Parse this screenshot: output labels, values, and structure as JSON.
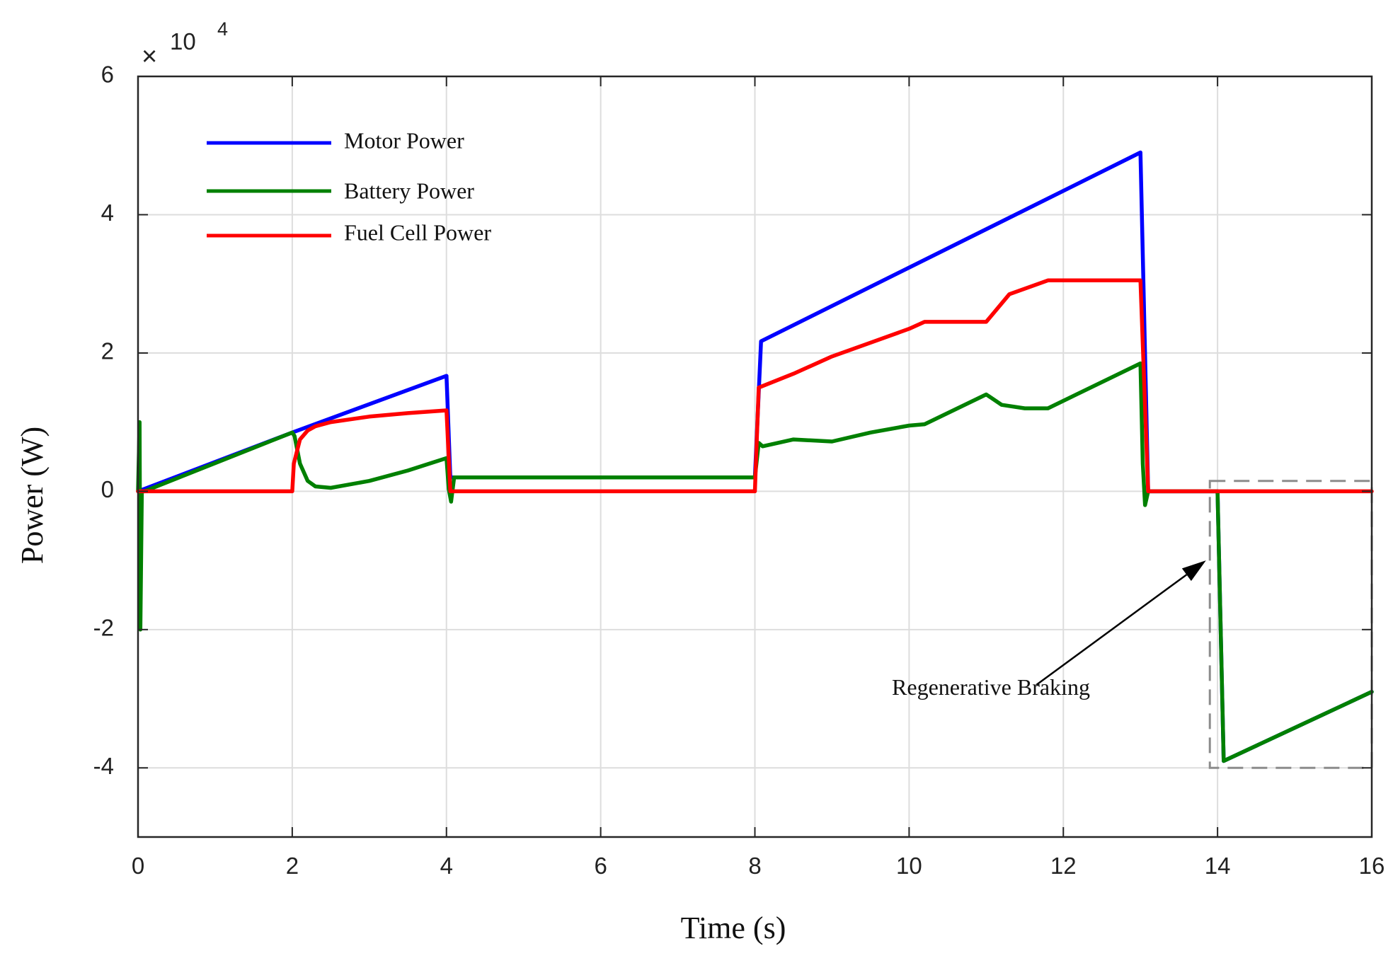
{
  "chart_data": {
    "type": "line",
    "xlabel": "Time (s)",
    "ylabel": "Power (W)",
    "xlim": [
      0,
      16
    ],
    "ylim": [
      -50000,
      60000
    ],
    "xticks": [
      0,
      2,
      4,
      6,
      8,
      10,
      12,
      14,
      16
    ],
    "yticks": [
      -40000,
      -20000,
      0,
      20000,
      40000,
      60000
    ],
    "xtick_labels": [
      "0",
      "2",
      "4",
      "6",
      "8",
      "10",
      "12",
      "14",
      "16"
    ],
    "ytick_labels": [
      "-4",
      "-2",
      "0",
      "2",
      "4",
      "6"
    ],
    "y_multiplier": {
      "times": "×",
      "base": "10",
      "exponent": "4"
    },
    "grid": true,
    "legend_position": "top-left",
    "series": [
      {
        "name": "Motor Power",
        "color": "#0000ff",
        "x": [
          0,
          2,
          4,
          4.05,
          8,
          8.08,
          13,
          13.1,
          14,
          14.08,
          16
        ],
        "y": [
          0,
          8500,
          16700,
          2000,
          2000,
          21700,
          49000,
          0,
          0,
          -39000,
          -29000
        ]
      },
      {
        "name": "Battery Power",
        "color": "#008000",
        "x": [
          0,
          0.02,
          0.03,
          0.05,
          0.08,
          2,
          2.03,
          2.1,
          2.2,
          2.3,
          2.5,
          3,
          3.5,
          4,
          4.03,
          4.06,
          4.1,
          8,
          8.05,
          8.1,
          8.5,
          9,
          9.5,
          10,
          10.2,
          11,
          11.2,
          11.5,
          11.8,
          13,
          13.03,
          13.06,
          13.1,
          14,
          14.08,
          16
        ],
        "y": [
          0,
          10000,
          -20000,
          0,
          0,
          8500,
          8000,
          4000,
          1500,
          700,
          500,
          1500,
          3000,
          4800,
          300,
          -1500,
          2000,
          2000,
          7000,
          6500,
          7500,
          7200,
          8500,
          9500,
          9700,
          14000,
          12500,
          12000,
          12000,
          18500,
          4000,
          -2000,
          0,
          0,
          -39000,
          -29000
        ]
      },
      {
        "name": "Fuel Cell Power",
        "color": "#ff0000",
        "x": [
          0,
          2,
          2.02,
          2.1,
          2.2,
          2.3,
          2.5,
          3,
          3.5,
          4,
          4.05,
          8,
          8.05,
          8.5,
          9,
          9.5,
          10,
          10.2,
          11,
          11.3,
          11.8,
          13,
          13.1,
          16
        ],
        "y": [
          0,
          0,
          4000,
          7500,
          8800,
          9400,
          10000,
          10800,
          11300,
          11700,
          0,
          0,
          15000,
          17000,
          19500,
          21500,
          23500,
          24500,
          24500,
          28500,
          30500,
          30500,
          0,
          0
        ]
      }
    ],
    "annotation": {
      "text": "Regenerative Braking",
      "box_x": [
        13.9,
        16
      ],
      "box_y": [
        -40000,
        1500
      ],
      "arrow_tail": [
        11.65,
        -28000
      ],
      "arrow_head": [
        13.85,
        -10000
      ]
    }
  }
}
